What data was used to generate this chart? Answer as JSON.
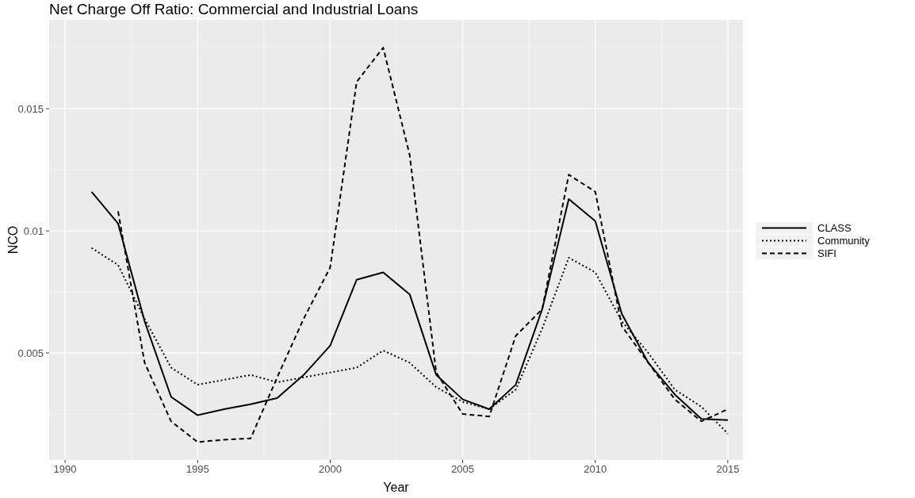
{
  "chart_data": {
    "type": "line",
    "title": "Net Charge Off Ratio: Commercial and Industrial Loans",
    "xlabel": "Year",
    "ylabel": "NCO",
    "x": [
      1991,
      1992,
      1993,
      1994,
      1995,
      1996,
      1997,
      1998,
      1999,
      2000,
      2001,
      2002,
      2003,
      2004,
      2005,
      2006,
      2007,
      2008,
      2009,
      2010,
      2011,
      2012,
      2013,
      2014,
      2015
    ],
    "xlim": [
      1989.4,
      2015.57
    ],
    "xticks": [
      1990,
      1995,
      2000,
      2005,
      2010,
      2015
    ],
    "ylim": [
      0.00062,
      0.01864
    ],
    "yticks": [
      0.005,
      0.01,
      0.015
    ],
    "grid": true,
    "legend": "right",
    "series": [
      {
        "name": "CLASS",
        "color": "#000000",
        "line_style": "solid",
        "values": [
          0.0116,
          0.0103,
          0.0063,
          0.0032,
          0.00245,
          0.0027,
          0.0029,
          0.00315,
          0.0041,
          0.0053,
          0.008,
          0.0083,
          0.0074,
          0.0041,
          0.0031,
          0.0027,
          0.0037,
          0.0068,
          0.0113,
          0.0104,
          0.0066,
          0.0046,
          0.0033,
          0.0023,
          0.00225
        ]
      },
      {
        "name": "Community",
        "color": "#000000",
        "line_style": "dotted",
        "values": [
          0.0093,
          0.0086,
          0.0064,
          0.0044,
          0.0037,
          0.0039,
          0.0041,
          0.0038,
          0.004,
          0.0042,
          0.0044,
          0.0051,
          0.0046,
          0.0036,
          0.003,
          0.0027,
          0.0035,
          0.006,
          0.0089,
          0.0083,
          0.0063,
          0.005,
          0.0035,
          0.0028,
          0.0017
        ]
      },
      {
        "name": "SIFI",
        "color": "#000000",
        "line_style": "dashed",
        "values": [
          null,
          0.0108,
          0.0046,
          0.0022,
          0.00135,
          0.00145,
          0.0015,
          0.004,
          0.0064,
          0.0085,
          0.0161,
          0.0175,
          0.0131,
          0.0042,
          0.0025,
          0.0024,
          0.0057,
          0.0068,
          0.0123,
          0.0116,
          0.0061,
          0.0046,
          0.0031,
          0.0022,
          0.0027
        ]
      }
    ]
  }
}
